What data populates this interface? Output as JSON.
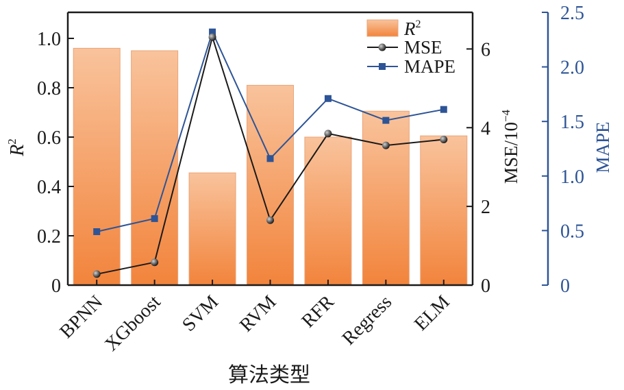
{
  "chart_data": {
    "type": "bar",
    "categories": [
      "BPNN",
      "XGboost",
      "SVM",
      "RVM",
      "RFR",
      "Regress",
      "ELM"
    ],
    "xlabel": "算法类型",
    "series": [
      {
        "name": "R²",
        "legend_main": "R",
        "legend_sup": "2",
        "type": "bar",
        "axis": "left",
        "values": [
          0.96,
          0.95,
          0.455,
          0.81,
          0.6,
          0.705,
          0.605
        ]
      },
      {
        "name": "MSE",
        "type": "line",
        "axis": "right",
        "values": [
          0.28,
          0.58,
          6.3,
          1.65,
          3.85,
          3.55,
          3.7
        ]
      },
      {
        "name": "MAPE",
        "type": "line",
        "axis": "far-right",
        "values": [
          0.49,
          0.61,
          2.32,
          1.16,
          1.71,
          1.51,
          1.61
        ]
      }
    ],
    "axes": {
      "left": {
        "label_main": "R",
        "label_sup": "2",
        "ylim": [
          0,
          1.1
        ],
        "ticks": [
          0,
          0.2,
          0.4,
          0.6,
          0.8,
          1.0
        ],
        "tick_labels": [
          "0",
          "0.2",
          "0.4",
          "0.6",
          "0.8",
          "1.0"
        ]
      },
      "right": {
        "label_main": "MSE/10",
        "label_sup": "−4",
        "ylim": [
          0,
          7
        ],
        "ticks": [
          0,
          2,
          4,
          6
        ],
        "tick_labels": [
          "0",
          "2",
          "4",
          "6"
        ]
      },
      "far_right": {
        "label": "MAPE",
        "ylim": [
          0,
          2.5
        ],
        "ticks": [
          0,
          0.5,
          1.0,
          1.5,
          2.0,
          2.5
        ],
        "tick_labels": [
          "0",
          "0.5",
          "1.0",
          "1.5",
          "2.0",
          "2.5"
        ]
      }
    },
    "legend_position": "top-right",
    "colors": {
      "bar_top": "#f9c39c",
      "bar_bottom": "#f2843c",
      "bar_edge": "#e9a47a",
      "mse": "#1a1a1a",
      "mape": "#2d5496",
      "axis": "#1a1a1a",
      "far_axis": "#2d5496"
    }
  }
}
